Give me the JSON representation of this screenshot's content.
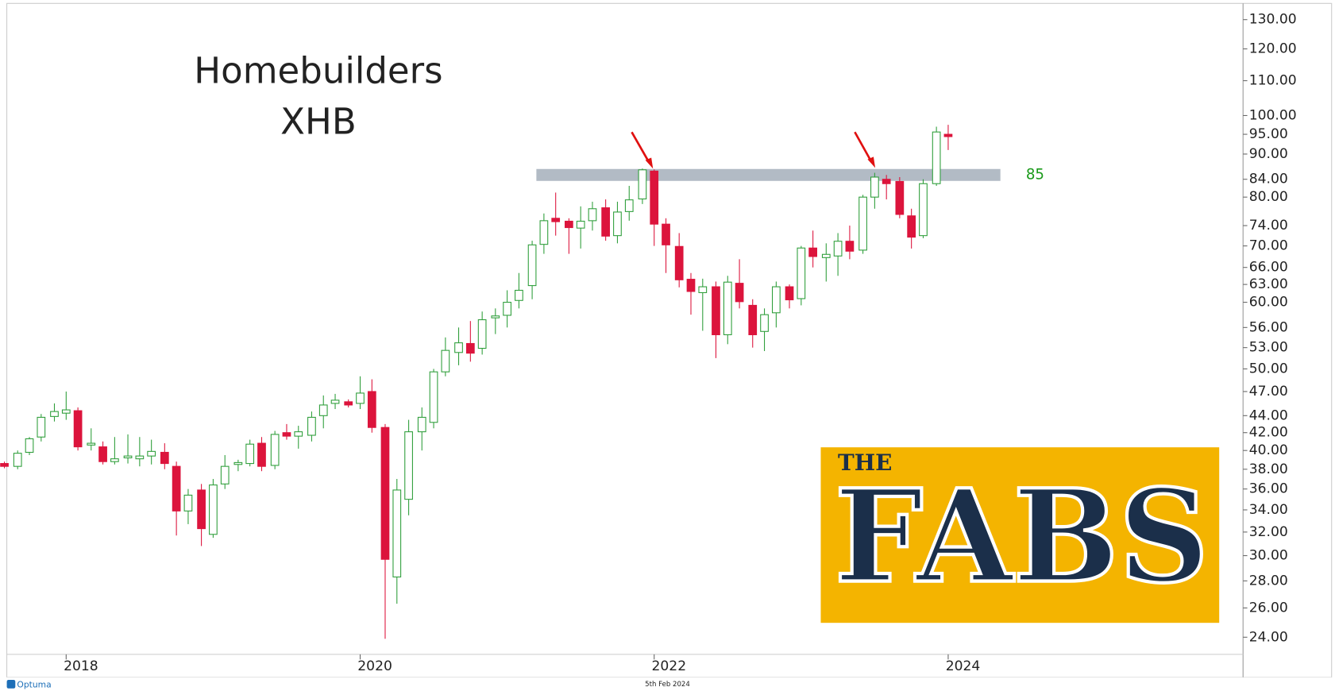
{
  "chart_data": {
    "type": "candlestick",
    "title": "Homebuilders",
    "subtitle": "XHB",
    "level": {
      "value": 85,
      "label": "85"
    },
    "logo": {
      "small": "THE",
      "big": "FABS"
    },
    "footer": {
      "brand": "Optuma",
      "date": "5th Feb 2024"
    },
    "log_scale": true,
    "up_color": "#2e9e3a",
    "down_color": "#dc143c",
    "level_color": "#a4afbb",
    "level_label_color": "#1a9a1a",
    "x": [
      2017.58,
      2017.67,
      2017.75,
      2017.83,
      2017.92,
      2018.0,
      2018.08,
      2018.17,
      2018.25,
      2018.33,
      2018.42,
      2018.5,
      2018.58,
      2018.67,
      2018.75,
      2018.83,
      2018.92,
      2019.0,
      2019.08,
      2019.17,
      2019.25,
      2019.33,
      2019.42,
      2019.5,
      2019.58,
      2019.67,
      2019.75,
      2019.83,
      2019.92,
      2020.0,
      2020.08,
      2020.17,
      2020.25,
      2020.33,
      2020.42,
      2020.5,
      2020.58,
      2020.67,
      2020.75,
      2020.83,
      2020.92,
      2021.0,
      2021.08,
      2021.17,
      2021.25,
      2021.33,
      2021.42,
      2021.5,
      2021.58,
      2021.67,
      2021.75,
      2021.83,
      2021.92,
      2022.0,
      2022.08,
      2022.17,
      2022.25,
      2022.33,
      2022.42,
      2022.5,
      2022.58,
      2022.67,
      2022.75,
      2022.83,
      2022.92,
      2023.0,
      2023.08,
      2023.17,
      2023.25,
      2023.33,
      2023.42,
      2023.5,
      2023.58,
      2023.67,
      2023.75,
      2023.83,
      2023.92,
      2024.0
    ],
    "open": [
      38.6,
      38.3,
      39.8,
      41.5,
      43.9,
      44.3,
      44.6,
      40.6,
      40.4,
      38.8,
      39.2,
      39.1,
      39.4,
      39.8,
      38.3,
      33.9,
      35.9,
      31.8,
      36.5,
      38.5,
      38.6,
      40.8,
      38.4,
      42.0,
      41.6,
      41.7,
      44.0,
      45.5,
      45.7,
      45.5,
      47,
      42.6,
      28.3,
      35,
      42.1,
      43.2,
      49.6,
      52.3,
      53.6,
      52.9,
      57.5,
      57.9,
      60.3,
      62.8,
      70.3,
      75.5,
      74.9,
      73.5,
      75,
      77.7,
      72,
      76.9,
      79.6,
      85.9,
      74.3,
      69.9,
      63.9,
      61.6,
      62.6,
      54.9,
      63.2,
      59.5,
      55.4,
      58.3,
      62.6,
      60.6,
      69.6,
      67.8,
      68.1,
      70.9,
      69.2,
      80,
      84,
      83.5,
      76,
      72,
      83,
      95
    ],
    "high": [
      38.8,
      40,
      41.5,
      44.2,
      45.5,
      47,
      45,
      42.5,
      41,
      41.5,
      41.8,
      41.5,
      41.2,
      40.8,
      38.8,
      36,
      36.5,
      37,
      39.5,
      39,
      41.2,
      41.5,
      42.2,
      43,
      42.8,
      44.5,
      46.5,
      46.7,
      46,
      49,
      48.6,
      43,
      37,
      43.5,
      45,
      50,
      54.5,
      56,
      57,
      58.5,
      59,
      62,
      65,
      71,
      76.5,
      81,
      75.5,
      78,
      79,
      79.5,
      79,
      82.5,
      86.5,
      86.3,
      75.5,
      72.5,
      65,
      64,
      63.5,
      64.5,
      67.5,
      60.5,
      59,
      63.5,
      63,
      70,
      73,
      70.5,
      72.5,
      74,
      80.5,
      85.5,
      85,
      84.5,
      77.5,
      84,
      97,
      97.5
    ],
    "low": [
      38.1,
      38,
      39.5,
      41,
      43.3,
      43.5,
      40,
      40,
      38.5,
      38.5,
      38.6,
      38.3,
      38.5,
      38,
      31.7,
      32.7,
      30.8,
      31.5,
      36,
      37.8,
      38.3,
      37.8,
      38,
      41.2,
      40.2,
      41,
      42.5,
      44.8,
      45,
      44.8,
      42,
      23.9,
      26.3,
      33.5,
      40,
      42.5,
      49,
      50.5,
      51,
      52,
      55,
      56,
      59,
      60.5,
      68.5,
      72,
      68.5,
      69.5,
      73,
      71,
      70.5,
      75,
      78.5,
      70,
      65,
      62.5,
      58,
      55.5,
      51.5,
      53.5,
      59,
      53,
      52.5,
      56,
      59,
      59.5,
      66,
      63.5,
      64.5,
      67.5,
      68.5,
      77.5,
      79.5,
      75.5,
      69.5,
      71.5,
      82.5,
      91
    ],
    "close": [
      38.3,
      39.7,
      41.3,
      43.8,
      44.5,
      44.7,
      40.4,
      40.8,
      38.8,
      39.1,
      39.4,
      39.4,
      39.9,
      38.6,
      33.9,
      35.4,
      32.3,
      36.4,
      38.3,
      38.7,
      40.7,
      38.3,
      41.8,
      41.6,
      42.1,
      43.8,
      45.3,
      45.9,
      45.3,
      46.8,
      42.6,
      29.7,
      35.9,
      42.1,
      43.8,
      49.6,
      52.6,
      53.7,
      52.2,
      57.2,
      57.8,
      60,
      62,
      70.2,
      75,
      74.8,
      73.6,
      74.9,
      77.5,
      71.9,
      76.8,
      79.4,
      86.2,
      74.3,
      70.2,
      63.8,
      61.8,
      62.6,
      54.9,
      63.4,
      60.1,
      54.9,
      58,
      62.6,
      60.4,
      69.6,
      68,
      68.4,
      70.9,
      69,
      80,
      84.5,
      83,
      76.3,
      71.7,
      83,
      95.6,
      94.4
    ],
    "xlim": [
      2017.55,
      2026
    ],
    "xticks": [
      2018,
      2020,
      2022,
      2024
    ],
    "ylim": [
      22.9,
      135.9
    ],
    "yticks": [
      {
        "value": 130,
        "label": "130.00"
      },
      {
        "value": 120,
        "label": "120.00"
      },
      {
        "value": 110,
        "label": "110.00"
      },
      {
        "value": 100,
        "label": "100.00"
      },
      {
        "value": 95,
        "label": "95.00"
      },
      {
        "value": 90,
        "label": "90.00"
      },
      {
        "value": 84,
        "label": "84.00"
      },
      {
        "value": 80,
        "label": "80.00"
      },
      {
        "value": 74,
        "label": "74.00"
      },
      {
        "value": 70,
        "label": "70.00"
      },
      {
        "value": 66,
        "label": "66.00"
      },
      {
        "value": 63,
        "label": "63.00"
      },
      {
        "value": 60,
        "label": "60.00"
      },
      {
        "value": 56,
        "label": "56.00"
      },
      {
        "value": 53,
        "label": "53.00"
      },
      {
        "value": 50,
        "label": "50.00"
      },
      {
        "value": 47,
        "label": "47.00"
      },
      {
        "value": 44,
        "label": "44.00"
      },
      {
        "value": 42,
        "label": "42.00"
      },
      {
        "value": 40,
        "label": "40.00"
      },
      {
        "value": 38,
        "label": "38.00"
      },
      {
        "value": 36,
        "label": "36.00"
      },
      {
        "value": 34,
        "label": "34.00"
      },
      {
        "value": 32,
        "label": "32.00"
      },
      {
        "value": 30,
        "label": "30.00"
      },
      {
        "value": 28,
        "label": "28.00"
      },
      {
        "value": 26,
        "label": "26.00"
      },
      {
        "value": 24,
        "label": "24.00"
      }
    ]
  }
}
